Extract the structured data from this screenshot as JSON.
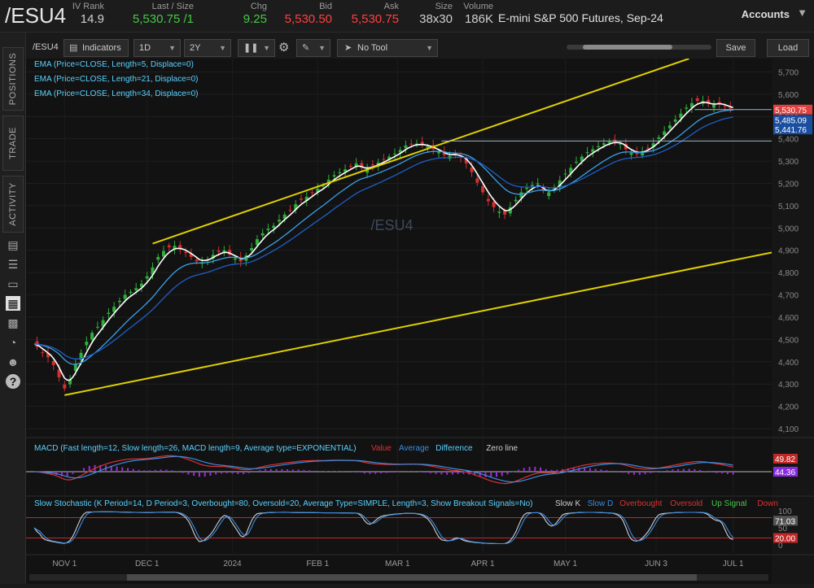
{
  "header": {
    "symbol": "/ESU4",
    "quotes": [
      {
        "label": "IV Rank",
        "value": "14.9",
        "color": "#cfcfcf"
      },
      {
        "label": "Last / Size",
        "value": "5,530.75 /1",
        "color": "#46c846"
      },
      {
        "label": "Chg",
        "value": "9.25",
        "color": "#46c846"
      },
      {
        "label": "Bid",
        "value": "5,530.50",
        "color": "#ff4040"
      },
      {
        "label": "Ask",
        "value": "5,530.75",
        "color": "#ff4040"
      },
      {
        "label": "Size",
        "value": "38x30",
        "color": "#cfcfcf"
      },
      {
        "label": "Volume",
        "value": "186K",
        "color": "#cfcfcf"
      }
    ],
    "description": "E-mini S&P 500 Futures, Sep-24",
    "accounts_label": "Accounts"
  },
  "sidebar": {
    "tabs": [
      "POSITIONS",
      "TRADE",
      "ACTIVITY"
    ],
    "icons": [
      "watchlist-icon",
      "list-icon",
      "tv-icon",
      "charts-icon",
      "grid-icon",
      "gauge-icon",
      "people-icon",
      "help-icon"
    ]
  },
  "toolbar": {
    "symbol": "/ESU4",
    "indicators_label": "Indicators",
    "timeframe": "1D",
    "range": "2Y",
    "tool": "No Tool",
    "save_label": "Save",
    "load_label": "Load"
  },
  "chart_data": {
    "type": "candlestick",
    "watermark": "/ESU4",
    "studies": [
      {
        "text": "EMA (Price=CLOSE, Length=5, Displace=0)",
        "color": "#5ad2ff"
      },
      {
        "text": "EMA (Price=CLOSE, Length=21, Displace=0)",
        "color": "#5ad2ff"
      },
      {
        "text": "EMA (Price=CLOSE, Length=34, Displace=0)",
        "color": "#5ad2ff"
      }
    ],
    "y_ticks": [
      4100,
      4200,
      4300,
      4400,
      4500,
      4600,
      4700,
      4800,
      4900,
      5000,
      5100,
      5200,
      5300,
      5400,
      5500,
      5600,
      5700
    ],
    "ylim": [
      4060,
      5760
    ],
    "x_labels": [
      {
        "label": "NOV 1",
        "day": 11
      },
      {
        "label": "DEC 1",
        "day": 41
      },
      {
        "label": "2024",
        "day": 72
      },
      {
        "label": "FEB 1",
        "day": 103
      },
      {
        "label": "MAR 1",
        "day": 132
      },
      {
        "label": "APR 1",
        "day": 163
      },
      {
        "label": "MAY 1",
        "day": 193
      },
      {
        "label": "JUN 3",
        "day": 226
      },
      {
        "label": "JUL 1",
        "day": 254
      }
    ],
    "xlim": [
      -3,
      268
    ],
    "closes": [
      [
        0,
        4480
      ],
      [
        3,
        4440
      ],
      [
        6,
        4410
      ],
      [
        8,
        4360
      ],
      [
        10,
        4300
      ],
      [
        11,
        4280
      ],
      [
        13,
        4320
      ],
      [
        15,
        4390
      ],
      [
        17,
        4440
      ],
      [
        19,
        4490
      ],
      [
        21,
        4530
      ],
      [
        24,
        4570
      ],
      [
        27,
        4620
      ],
      [
        30,
        4660
      ],
      [
        33,
        4700
      ],
      [
        36,
        4720
      ],
      [
        39,
        4750
      ],
      [
        42,
        4800
      ],
      [
        45,
        4870
      ],
      [
        48,
        4910
      ],
      [
        51,
        4920
      ],
      [
        54,
        4900
      ],
      [
        57,
        4870
      ],
      [
        60,
        4840
      ],
      [
        63,
        4860
      ],
      [
        66,
        4890
      ],
      [
        69,
        4900
      ],
      [
        72,
        4870
      ],
      [
        75,
        4850
      ],
      [
        78,
        4890
      ],
      [
        81,
        4950
      ],
      [
        84,
        4990
      ],
      [
        87,
        5010
      ],
      [
        90,
        5050
      ],
      [
        93,
        5080
      ],
      [
        96,
        5120
      ],
      [
        99,
        5140
      ],
      [
        102,
        5170
      ],
      [
        105,
        5190
      ],
      [
        108,
        5230
      ],
      [
        111,
        5250
      ],
      [
        114,
        5270
      ],
      [
        117,
        5290
      ],
      [
        120,
        5260
      ],
      [
        123,
        5280
      ],
      [
        126,
        5300
      ],
      [
        129,
        5320
      ],
      [
        132,
        5340
      ],
      [
        135,
        5370
      ],
      [
        138,
        5380
      ],
      [
        141,
        5375
      ],
      [
        144,
        5360
      ],
      [
        147,
        5340
      ],
      [
        150,
        5320
      ],
      [
        153,
        5330
      ],
      [
        156,
        5310
      ],
      [
        159,
        5250
      ],
      [
        162,
        5180
      ],
      [
        165,
        5120
      ],
      [
        168,
        5080
      ],
      [
        171,
        5060
      ],
      [
        174,
        5110
      ],
      [
        177,
        5160
      ],
      [
        180,
        5190
      ],
      [
        183,
        5200
      ],
      [
        186,
        5150
      ],
      [
        189,
        5180
      ],
      [
        192,
        5230
      ],
      [
        195,
        5270
      ],
      [
        198,
        5310
      ],
      [
        201,
        5340
      ],
      [
        204,
        5360
      ],
      [
        207,
        5380
      ],
      [
        210,
        5390
      ],
      [
        213,
        5380
      ],
      [
        216,
        5340
      ],
      [
        219,
        5330
      ],
      [
        222,
        5350
      ],
      [
        225,
        5380
      ],
      [
        228,
        5420
      ],
      [
        231,
        5460
      ],
      [
        234,
        5500
      ],
      [
        237,
        5540
      ],
      [
        240,
        5570
      ],
      [
        243,
        5570
      ],
      [
        246,
        5550
      ],
      [
        249,
        5560
      ],
      [
        252,
        5540
      ],
      [
        254,
        5531
      ]
    ],
    "channel_lines": [
      {
        "from": [
          11,
          4250
        ],
        "to": [
          268,
          4890
        ]
      },
      {
        "from": [
          43,
          4930
        ],
        "to": [
          238,
          5760
        ]
      }
    ],
    "horizontal_levels": [
      5531,
      5390
    ],
    "price_labels": [
      {
        "value": "5,530.75",
        "bg": "#e04040"
      },
      {
        "value": "5,485.09",
        "bg": "#1a4fa0"
      },
      {
        "value": "5,441.76",
        "bg": "#1a4fa0"
      }
    ],
    "macd": {
      "title": "MACD (Fast length=12, Slow length=26, MACD length=9, Average type=EXPONENTIAL)",
      "legend": [
        {
          "text": "Value",
          "color": "#e03030"
        },
        {
          "text": "Average",
          "color": "#3a8de0"
        },
        {
          "text": "Difference",
          "color": "#5ad2ff"
        },
        {
          "text": "Zero line",
          "color": "#cfcfcf"
        }
      ],
      "labels": [
        {
          "value": "49.82",
          "bg": "#c02828"
        },
        {
          "value": "44.36",
          "bg": "#8a2be2"
        }
      ]
    },
    "stochastic": {
      "title": "Slow Stochastic (K Period=14, D Period=3, Overbought=80, Oversold=20, Average Type=SIMPLE, Length=3, Show Breakout Signals=No)",
      "legend": [
        {
          "text": "Slow K",
          "color": "#cfcfcf"
        },
        {
          "text": "Slow D",
          "color": "#3a8de0"
        },
        {
          "text": "Overbought",
          "color": "#e03030"
        },
        {
          "text": "Oversold",
          "color": "#e03030"
        },
        {
          "text": "Up Signal",
          "color": "#46c846"
        },
        {
          "text": "Down",
          "color": "#e03030"
        }
      ],
      "y_ticks": [
        0,
        50,
        100
      ],
      "ylim": [
        -10,
        110
      ],
      "overbought": 80,
      "oversold": 20,
      "labels": [
        {
          "value": "71.03",
          "bg": "#555555"
        },
        {
          "value": "20.00",
          "bg": "#c02828"
        }
      ]
    }
  }
}
